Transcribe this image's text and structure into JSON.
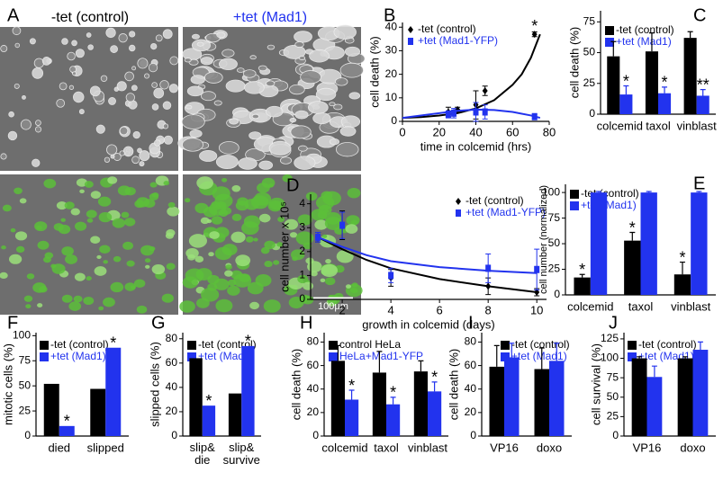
{
  "figure_a": {
    "panel": "A",
    "labels": [
      "-tet (control)",
      "+tet (Mad1)"
    ],
    "scale_bar": "100μm"
  },
  "chart_data": [
    {
      "panel": "B",
      "type": "line",
      "xlabel": "time in colcemid (hrs)",
      "ylabel": "cell death (%)",
      "xlim": [
        0,
        80
      ],
      "xticks": [
        0,
        20,
        40,
        60,
        80
      ],
      "ylim": [
        0,
        42
      ],
      "yticks": [
        0,
        10,
        20,
        30,
        40
      ],
      "series": [
        {
          "name": "-tet (control)",
          "color": "#000000",
          "marker": "diamond",
          "x": [
            25,
            30,
            40,
            45,
            72
          ],
          "values": [
            4,
            5,
            7,
            13,
            37
          ],
          "errors": [
            2,
            1,
            6,
            2,
            1
          ],
          "significance": [
            null,
            null,
            null,
            null,
            "*"
          ],
          "curve": {
            "x": [
              0,
              10,
              20,
              30,
              40,
              50,
              60,
              65,
              70,
              75
            ],
            "values": [
              1.5,
              1.8,
              2.5,
              3.5,
              5.5,
              9,
              15.5,
              20,
              27,
              37
            ]
          }
        },
        {
          "name": "+tet (Mad1-YFP)",
          "color": "#2233ee",
          "marker": "square",
          "x": [
            25,
            28,
            40,
            45,
            72
          ],
          "values": [
            3,
            3.5,
            4,
            4,
            2
          ],
          "errors": [
            1.5,
            2,
            4,
            3,
            1
          ],
          "curve": {
            "x": [
              0,
              10,
              20,
              30,
              40,
              50,
              60,
              70,
              75
            ],
            "values": [
              1.5,
              2.5,
              3.5,
              4.5,
              5,
              4.8,
              4,
              2.5,
              1.5
            ]
          }
        }
      ]
    },
    {
      "panel": "C",
      "type": "bar",
      "ylabel": "cell death (%)",
      "ylim": [
        0,
        84
      ],
      "yticks": [
        0,
        25,
        50,
        75
      ],
      "categories": [
        "colcemid",
        "taxol",
        "vinblast"
      ],
      "series": [
        {
          "name": "-tet (control)",
          "color": "#000000",
          "values": [
            47,
            51,
            62
          ],
          "errors": [
            12,
            15,
            5
          ]
        },
        {
          "name": "+tet (Mad1)",
          "color": "#2233ee",
          "values": [
            16,
            17,
            15
          ],
          "errors": [
            7,
            5,
            5
          ],
          "significance": [
            "*",
            "*",
            "**"
          ]
        }
      ]
    },
    {
      "panel": "D",
      "type": "line",
      "xlabel": "growth in colcemid (days)",
      "ylabel": "cell number x 10⁵",
      "xlim": [
        0.7,
        10.4
      ],
      "xticks": [
        2,
        4,
        6,
        8,
        10
      ],
      "ylim": [
        0,
        4.4
      ],
      "yticks": [
        0,
        1,
        2,
        3,
        4
      ],
      "series": [
        {
          "name": "-tet (control)",
          "color": "#000000",
          "marker": "diamond",
          "x": [
            1,
            2,
            4,
            8,
            10
          ],
          "values": [
            2.6,
            3.1,
            0.9,
            0.55,
            0.3
          ],
          "errors": [
            0.2,
            0.6,
            0.35,
            0.35,
            0.15
          ],
          "curve": {
            "x": [
              1,
              2,
              3,
              4,
              6,
              8,
              10
            ],
            "values": [
              2.6,
              2.1,
              1.65,
              1.3,
              0.85,
              0.55,
              0.3
            ]
          }
        },
        {
          "name": "+tet (Mad1-YFP)",
          "color": "#2233ee",
          "marker": "square",
          "x": [
            1,
            2,
            4,
            8,
            10
          ],
          "values": [
            2.6,
            3.1,
            1.0,
            1.3,
            1.25
          ],
          "errors": [
            0.2,
            0.55,
            0.3,
            0.6,
            0.85
          ],
          "curve": {
            "x": [
              1,
              2,
              3,
              4,
              6,
              8,
              10
            ],
            "values": [
              2.6,
              2.2,
              1.85,
              1.6,
              1.35,
              1.2,
              1.1
            ]
          }
        }
      ]
    },
    {
      "panel": "E",
      "type": "bar",
      "ylabel": "cell number (normalized)",
      "ylim": [
        0,
        108
      ],
      "yticks": [
        0,
        25,
        50,
        75,
        100
      ],
      "categories": [
        "colcemid",
        "taxol",
        "vinblast"
      ],
      "series": [
        {
          "name": "-tet (control)",
          "color": "#000000",
          "values": [
            17,
            53,
            20
          ],
          "errors": [
            3,
            8,
            12
          ],
          "significance": [
            "*",
            "*",
            "*"
          ]
        },
        {
          "name": "+tet (Mad1)",
          "color": "#2233ee",
          "values": [
            100,
            100,
            100
          ],
          "errors": [
            1,
            1,
            1
          ]
        }
      ]
    },
    {
      "panel": "F",
      "type": "bar",
      "ylabel": "mitotic cells (%)",
      "ylim": [
        0,
        103
      ],
      "yticks": [
        0,
        25,
        50,
        75,
        100
      ],
      "categories": [
        "died",
        "slipped"
      ],
      "series": [
        {
          "name": "-tet (control)",
          "color": "#000000",
          "values": [
            52,
            47
          ]
        },
        {
          "name": "+tet (Mad1)",
          "color": "#2233ee",
          "values": [
            10,
            88
          ],
          "significance": [
            "*",
            "*"
          ]
        }
      ]
    },
    {
      "panel": "G",
      "type": "bar",
      "ylabel": "slipped cells (%)",
      "ylim": [
        0,
        85
      ],
      "yticks": [
        0,
        20,
        40,
        60,
        80
      ],
      "categories": [
        [
          "slip&",
          "die"
        ],
        [
          "slip&",
          "survive"
        ]
      ],
      "series": [
        {
          "name": "-tet (control)",
          "color": "#000000",
          "values": [
            64,
            35
          ]
        },
        {
          "name": "+tet (Mad1)",
          "color": "#2233ee",
          "values": [
            25,
            74
          ],
          "significance": [
            "*",
            "*"
          ]
        }
      ]
    },
    {
      "panel": "H",
      "type": "bar",
      "ylabel": "cell death (%)",
      "ylim": [
        0,
        88
      ],
      "yticks": [
        0,
        20,
        40,
        60,
        80
      ],
      "categories": [
        "colcemid",
        "taxol",
        "vinblast"
      ],
      "series": [
        {
          "name": "control HeLa",
          "color": "#000000",
          "values": [
            64,
            54,
            55
          ],
          "errors": [
            13,
            18,
            9
          ]
        },
        {
          "name": "HeLa+Mad1-YFP",
          "color": "#2233ee",
          "values": [
            31,
            27,
            38
          ],
          "errors": [
            8,
            6,
            8
          ],
          "significance": [
            "*",
            "*",
            "*"
          ]
        }
      ]
    },
    {
      "panel": "I",
      "type": "bar",
      "ylabel": "cell death (%)",
      "ylim": [
        0,
        88
      ],
      "yticks": [
        0,
        20,
        40,
        60,
        80
      ],
      "categories": [
        "VP16",
        "doxo"
      ],
      "series": [
        {
          "name": "-tet (control)",
          "color": "#000000",
          "values": [
            59,
            57
          ],
          "errors": [
            18,
            18
          ]
        },
        {
          "name": "+tet (Mad1)",
          "color": "#2233ee",
          "values": [
            67,
            64
          ],
          "errors": [
            12,
            15
          ]
        }
      ]
    },
    {
      "panel": "J",
      "type": "bar",
      "ylabel": "cell survival (%)",
      "ylim": [
        0,
        133
      ],
      "yticks": [
        0,
        25,
        50,
        75,
        100,
        125
      ],
      "categories": [
        "VP16",
        "doxo"
      ],
      "series": [
        {
          "name": "-tet (control)",
          "color": "#000000",
          "values": [
            100,
            100
          ],
          "errors": [
            2,
            2
          ]
        },
        {
          "name": "+tet (Mad1)",
          "color": "#2233ee",
          "values": [
            76,
            111
          ],
          "errors": [
            14,
            10
          ]
        }
      ]
    }
  ]
}
